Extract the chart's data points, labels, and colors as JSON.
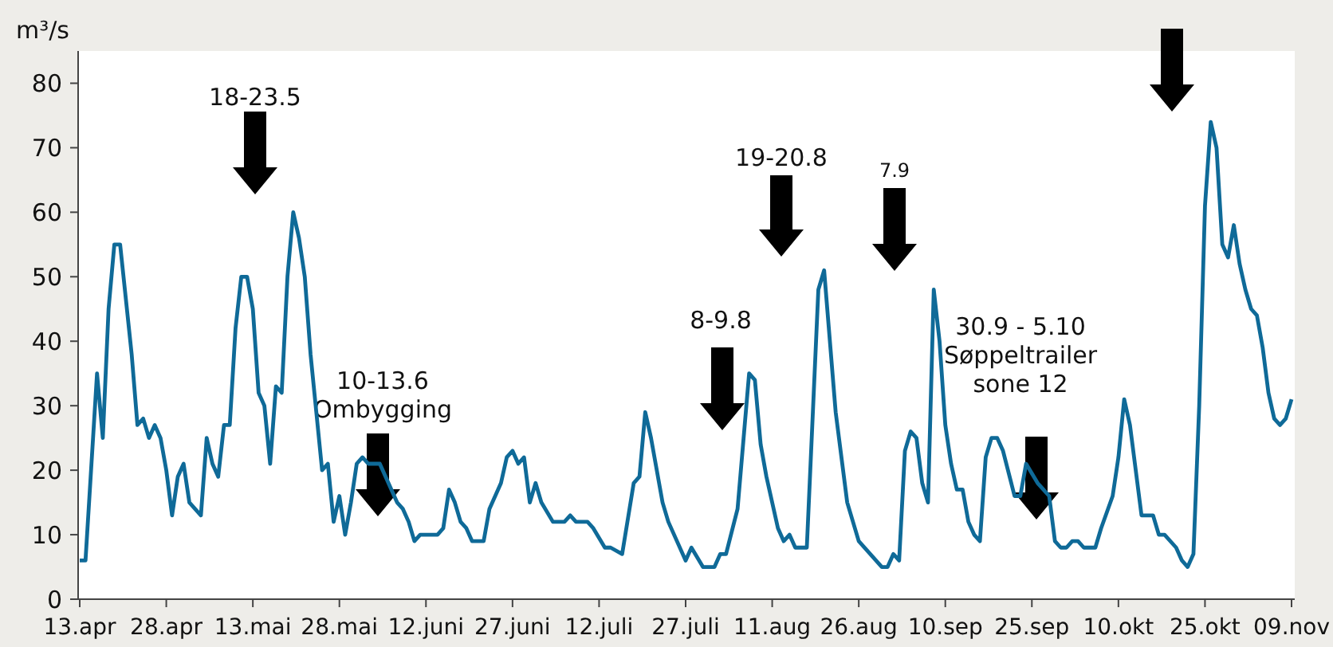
{
  "chart_data": {
    "type": "line",
    "ylabel": "m³/s",
    "x": [
      "--04-13",
      "--04-14",
      "--04-16",
      "--04-17",
      "--04-18",
      "--04-19",
      "--04-20",
      "--04-22",
      "--04-23",
      "--04-24",
      "--04-25",
      "--04-26",
      "--04-27",
      "--04-28",
      "--04-29",
      "--04-30",
      "--05-01",
      "--05-02",
      "--05-04",
      "--05-05",
      "--05-06",
      "--05-07",
      "--05-08",
      "--05-09",
      "--05-10",
      "--05-11",
      "--05-12",
      "--05-13",
      "--05-14",
      "--05-15",
      "--05-16",
      "--05-17",
      "--05-18",
      "--05-19",
      "--05-20",
      "--05-21",
      "--05-22",
      "--05-23",
      "--05-24",
      "--05-25",
      "--05-26",
      "--05-27",
      "--05-28",
      "--05-29",
      "--05-30",
      "--05-31",
      "--06-01",
      "--06-02",
      "--06-03",
      "--06-04",
      "--06-07",
      "--06-08",
      "--06-09",
      "--06-10",
      "--06-11",
      "--06-13",
      "--06-14",
      "--06-15",
      "--06-16",
      "--06-17",
      "--06-18",
      "--06-19",
      "--06-20",
      "--06-22",
      "--06-23",
      "--06-25",
      "--06-26",
      "--06-27",
      "--06-28",
      "--06-29",
      "--06-30",
      "--07-01",
      "--07-02",
      "--07-04",
      "--07-06",
      "--07-07",
      "--07-08",
      "--07-10",
      "--07-11",
      "--07-13",
      "--07-14",
      "--07-16",
      "--07-18",
      "--07-19",
      "--07-20",
      "--07-21",
      "--07-23",
      "--07-24",
      "--07-27",
      "--07-28",
      "--07-30",
      "--08-01",
      "--08-02",
      "--08-03",
      "--08-05",
      "--08-07",
      "--08-08",
      "--08-09",
      "--08-10",
      "--08-12",
      "--08-13",
      "--08-14",
      "--08-15",
      "--08-17",
      "--08-19",
      "--08-20",
      "--08-22",
      "--08-24",
      "--08-26",
      "--08-28",
      "--08-30",
      "--08-31",
      "--09-01",
      "--09-02",
      "--09-03",
      "--09-04",
      "--09-05",
      "--09-06",
      "--09-07",
      "--09-08",
      "--09-09",
      "--09-10",
      "--09-11",
      "--09-12",
      "--09-13",
      "--09-14",
      "--09-15",
      "--09-16",
      "--09-17",
      "--09-18",
      "--09-19",
      "--09-20",
      "--09-22",
      "--09-23",
      "--09-24",
      "--09-26",
      "--09-27",
      "--09-28",
      "--09-29",
      "--09-30",
      "--10-01",
      "--10-02",
      "--10-03",
      "--10-04",
      "--10-06",
      "--10-07",
      "--10-09",
      "--10-10",
      "--10-11",
      "--10-12",
      "--10-14",
      "--10-16",
      "--10-17",
      "--10-18",
      "--10-20",
      "--10-21",
      "--10-22",
      "--10-23",
      "--10-24",
      "--10-25",
      "--10-26",
      "--10-27",
      "--10-28",
      "--10-29",
      "--10-30",
      "--10-31",
      "--11-01",
      "--11-02",
      "--11-03",
      "--11-04",
      "--11-05",
      "--11-06",
      "--11-07",
      "--11-08",
      "--11-09"
    ],
    "series": [
      {
        "color": "#0f6a98",
        "values": [
          6,
          6,
          35,
          25,
          45,
          55,
          55,
          38,
          27,
          28,
          25,
          27,
          25,
          20,
          13,
          19,
          21,
          15,
          13,
          25,
          21,
          19,
          27,
          27,
          42,
          50,
          50,
          45,
          32,
          30,
          21,
          33,
          32,
          50,
          60,
          56,
          50,
          38,
          29,
          20,
          21,
          12,
          16,
          10,
          15,
          21,
          22,
          21,
          21,
          21,
          15,
          14,
          12,
          9,
          10,
          10,
          10,
          11,
          17,
          15,
          12,
          11,
          9,
          9,
          14,
          18,
          22,
          23,
          21,
          22,
          15,
          18,
          15,
          12,
          12,
          13,
          12,
          12,
          11,
          8,
          8,
          7,
          18,
          19,
          29,
          25,
          15,
          12,
          6,
          8,
          5,
          5,
          7,
          7,
          14,
          35,
          34,
          24,
          19,
          11,
          9,
          10,
          8,
          8,
          48,
          51,
          29,
          15,
          9,
          7,
          5,
          5,
          7,
          6,
          23,
          26,
          25,
          18,
          15,
          48,
          40,
          27,
          21,
          17,
          17,
          12,
          10,
          9,
          22,
          25,
          25,
          23,
          16,
          16,
          21,
          18,
          17,
          16,
          9,
          8,
          8,
          9,
          9,
          8,
          8,
          11,
          16,
          22,
          31,
          27,
          13,
          13,
          10,
          10,
          8,
          6,
          5,
          7,
          30,
          61,
          74,
          70,
          55,
          53,
          58,
          52,
          48,
          45,
          44,
          39,
          32,
          28,
          27,
          28,
          31
        ]
      }
    ],
    "xlim": [
      "--04-13",
      "--11-09"
    ],
    "xticks": [
      {
        "value": "--04-13",
        "label": "13.apr"
      },
      {
        "value": "--04-28",
        "label": "28.apr"
      },
      {
        "value": "--05-13",
        "label": "13.mai"
      },
      {
        "value": "--05-28",
        "label": "28.mai"
      },
      {
        "value": "--06-12",
        "label": "12.juni"
      },
      {
        "value": "--06-27",
        "label": "27.juni"
      },
      {
        "value": "--07-12",
        "label": "12.juli"
      },
      {
        "value": "--07-27",
        "label": "27.juli"
      },
      {
        "value": "--08-11",
        "label": "11.aug"
      },
      {
        "value": "--08-26",
        "label": "26.aug"
      },
      {
        "value": "--09-10",
        "label": "10.sep"
      },
      {
        "value": "--09-25",
        "label": "25.sep"
      },
      {
        "value": "--10-10",
        "label": "10.okt"
      },
      {
        "value": "--10-25",
        "label": "25.okt"
      },
      {
        "value": "--11-09",
        "label": "09.nov"
      }
    ],
    "ylim": [
      0,
      85
    ],
    "yticks": [
      0,
      10,
      20,
      30,
      40,
      50,
      60,
      70,
      80
    ],
    "marker": "none",
    "line_style": "solid",
    "annotations": [
      "18-23.5",
      "10-13.6\nOmbygging",
      "8-9.8",
      "19-20.8",
      "7.9",
      "30.9 - 5.10\nSøppeltrailer\nsone 12"
    ]
  }
}
